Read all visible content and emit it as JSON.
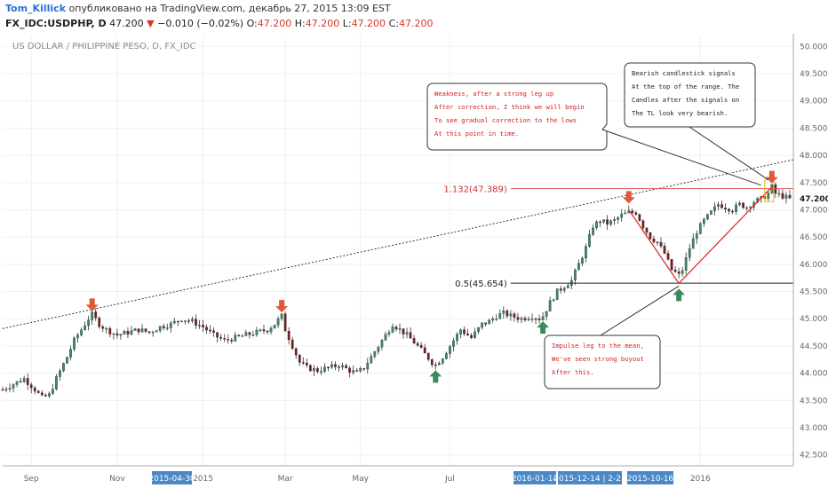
{
  "header": {
    "author": "Tom_Killick",
    "published": "опубликовано на TradingView.com, декабрь 27, 2015 13:09 EST",
    "symbol": "FX_IDC:USDPHP, D",
    "last": "47.200",
    "change": "−0.010 (−0.02%)",
    "o_label": "O:",
    "o": "47.200",
    "h_label": "H:",
    "h": "47.200",
    "l_label": "L:",
    "l": "47.200",
    "c_label": "C:",
    "c": "47.200"
  },
  "chart_data": {
    "type": "candlestick",
    "title": "US DOLLAR / PHILIPPINE PESO, D, FX_IDC",
    "ylim": [
      42.3,
      50.2
    ],
    "y_ticks": [
      "50.000",
      "49.500",
      "49.000",
      "48.500",
      "48.000",
      "47.500",
      "47.000",
      "46.500",
      "46.000",
      "45.500",
      "45.000",
      "44.500",
      "44.000",
      "43.500",
      "43.000",
      "42.500"
    ],
    "last_price_label": "47.200",
    "x_ticks": [
      "Sep",
      "Nov",
      "2015",
      "Mar",
      "May",
      "Jul",
      "2016"
    ],
    "x_highlight_labels": [
      "2015-04-30",
      "2016-01-14",
      "2015-12-14 | 2-23",
      "2015-10-16"
    ],
    "close_path": [
      [
        0,
        43.7
      ],
      [
        3,
        43.8
      ],
      [
        6,
        43.9
      ],
      [
        9,
        43.7
      ],
      [
        11,
        43.55
      ],
      [
        13,
        43.6
      ],
      [
        15,
        43.9
      ],
      [
        18,
        44.3
      ],
      [
        20,
        44.6
      ],
      [
        22,
        44.8
      ],
      [
        24,
        45.0
      ],
      [
        25,
        45.08
      ],
      [
        27,
        44.9
      ],
      [
        29,
        44.8
      ],
      [
        32,
        44.7
      ],
      [
        35,
        44.75
      ],
      [
        38,
        44.8
      ],
      [
        41,
        44.75
      ],
      [
        44,
        44.85
      ],
      [
        47,
        44.9
      ],
      [
        50,
        45.0
      ],
      [
        53,
        44.95
      ],
      [
        56,
        44.85
      ],
      [
        59,
        44.7
      ],
      [
        62,
        44.6
      ],
      [
        65,
        44.65
      ],
      [
        68,
        44.7
      ],
      [
        71,
        44.75
      ],
      [
        74,
        44.8
      ],
      [
        76,
        44.9
      ],
      [
        78,
        45.05
      ],
      [
        79,
        44.8
      ],
      [
        81,
        44.5
      ],
      [
        83,
        44.2
      ],
      [
        85,
        44.1
      ],
      [
        88,
        44.05
      ],
      [
        91,
        44.1
      ],
      [
        94,
        44.15
      ],
      [
        97,
        44.05
      ],
      [
        99,
        44.0
      ],
      [
        101,
        44.1
      ],
      [
        103,
        44.3
      ],
      [
        106,
        44.6
      ],
      [
        109,
        44.9
      ],
      [
        111,
        44.8
      ],
      [
        113,
        44.7
      ],
      [
        116,
        44.5
      ],
      [
        118,
        44.35
      ],
      [
        120,
        44.2
      ],
      [
        121,
        44.15
      ],
      [
        123,
        44.3
      ],
      [
        126,
        44.6
      ],
      [
        128,
        44.8
      ],
      [
        131,
        44.65
      ],
      [
        134,
        44.9
      ],
      [
        136,
        44.95
      ],
      [
        138,
        45.05
      ],
      [
        140,
        45.1
      ],
      [
        142,
        45.05
      ],
      [
        145,
        45.0
      ],
      [
        148,
        45.05
      ],
      [
        150,
        45.0
      ],
      [
        151,
        45.05
      ],
      [
        153,
        45.3
      ],
      [
        155,
        45.5
      ],
      [
        157,
        45.6
      ],
      [
        159,
        45.7
      ],
      [
        161,
        46.0
      ],
      [
        163,
        46.3
      ],
      [
        165,
        46.7
      ],
      [
        167,
        46.8
      ],
      [
        169,
        46.75
      ],
      [
        171,
        46.8
      ],
      [
        173,
        46.9
      ],
      [
        175,
        46.95
      ],
      [
        177,
        46.95
      ],
      [
        179,
        46.7
      ],
      [
        181,
        46.5
      ],
      [
        183,
        46.4
      ],
      [
        185,
        46.2
      ],
      [
        187,
        45.9
      ],
      [
        189,
        45.8
      ],
      [
        190,
        45.9
      ],
      [
        192,
        46.3
      ],
      [
        194,
        46.6
      ],
      [
        196,
        46.8
      ],
      [
        198,
        46.95
      ],
      [
        200,
        47.1
      ],
      [
        202,
        47.05
      ],
      [
        204,
        47.0
      ],
      [
        206,
        47.1
      ],
      [
        208,
        47.05
      ],
      [
        210,
        47.15
      ],
      [
        212,
        47.2
      ],
      [
        214,
        47.3
      ],
      [
        215,
        47.42
      ],
      [
        216,
        47.3
      ],
      [
        218,
        47.25
      ],
      [
        220,
        47.2
      ]
    ],
    "levels": [
      {
        "label": "1.132(47.389)",
        "value": 47.389
      },
      {
        "label": "0.5(45.654)",
        "value": 45.654
      }
    ],
    "trendline": {
      "y_start": 44.82,
      "y_end": 47.92
    },
    "signal_arrows": [
      {
        "direction": "down",
        "x": 25,
        "y": 45.08
      },
      {
        "direction": "down",
        "x": 78,
        "y": 45.05
      },
      {
        "direction": "down",
        "x": 175,
        "y": 47.05
      },
      {
        "direction": "down",
        "x": 215,
        "y": 47.42
      },
      {
        "direction": "up",
        "x": 121,
        "y": 44.15
      },
      {
        "direction": "up",
        "x": 151,
        "y": 45.05
      },
      {
        "direction": "up",
        "x": 189,
        "y": 45.65
      }
    ],
    "annotations": [
      {
        "id": "weakness",
        "lines": [
          "Weakness, after a strong leg up",
          "After correction, I think we will begin",
          "To see gradual correction to the lows",
          "At this point in time."
        ]
      },
      {
        "id": "bearish",
        "lines": [
          "Bearish candlestick signals",
          "At the top of the range. The",
          "Candles after the signals on",
          "The TL look very bearish."
        ]
      },
      {
        "id": "impulse",
        "lines": [
          "Impulse leg to the mean,",
          "We've seen strong buyout",
          "After this."
        ]
      }
    ],
    "colors": {
      "up": "#3e8a68",
      "down": "#7a1d1d",
      "arrow_down": "#e0573a",
      "arrow_up": "#3a8a5e",
      "level_line": "#e05050",
      "v_lines": "#e03030",
      "highlight": "#4a88c7"
    }
  }
}
